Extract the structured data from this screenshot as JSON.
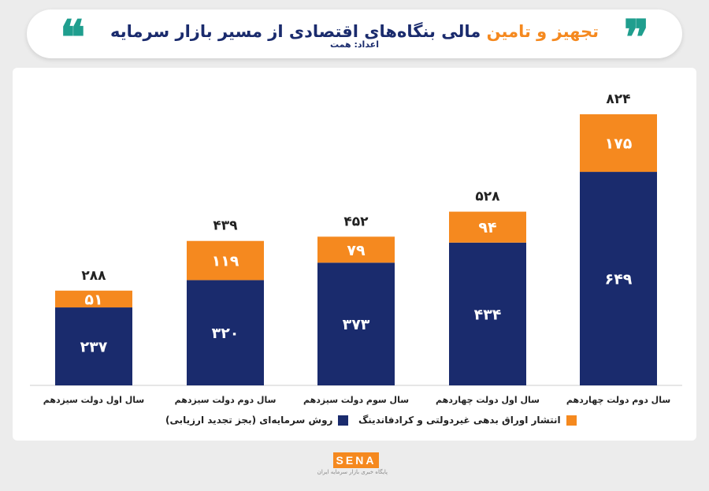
{
  "header": {
    "title_highlight": "تجهیز و تامین",
    "title_rest": " مالی بنگاه‌های اقتصادی از مسیر بازار سرمایه",
    "subtitle": "اعداد: همت",
    "quote_left_glyph": "❝",
    "quote_right_glyph": "❞"
  },
  "colors": {
    "navy": "#1a2b6d",
    "orange": "#f5891f",
    "teal": "#1f9e8e"
  },
  "chart_data": {
    "type": "bar",
    "stacked": true,
    "categories": [
      "سال اول دولت سیزدهم",
      "سال دوم دولت سیزدهم",
      "سال سوم دولت سیزدهم",
      "سال اول دولت چهاردهم",
      "سال دوم دولت چهاردهم"
    ],
    "series": [
      {
        "name": "روش سرمایه‌ای (بجز تجدید ارزیابی)",
        "color": "#1a2b6d",
        "values": [
          237,
          320,
          373,
          434,
          649
        ],
        "labels": [
          "۲۳۷",
          "۳۲۰",
          "۳۷۳",
          "۴۳۴",
          "۶۴۹"
        ]
      },
      {
        "name": "انتشار اوراق بدهی غیردولتی و کرادفاندینگ",
        "color": "#f5891f",
        "values": [
          51,
          119,
          79,
          94,
          175
        ],
        "labels": [
          "۵۱",
          "۱۱۹",
          "۷۹",
          "۹۴",
          "۱۷۵"
        ]
      }
    ],
    "totals": [
      288,
      439,
      452,
      528,
      824
    ],
    "total_labels": [
      "۲۸۸",
      "۴۳۹",
      "۴۵۲",
      "۵۲۸",
      "۸۲۴"
    ],
    "ylim": [
      0,
      824
    ],
    "grid": false,
    "legend_position": "bottom"
  },
  "legend": {
    "item1": "انتشار اوراق بدهی غیردولتی و کرادفاندینگ",
    "item2": "روش سرمایه‌ای (بجز تجدید ارزیابی)"
  },
  "brand": {
    "logo": "SENA",
    "tagline": "پایگاه خبری بازار سرمایه ایران"
  }
}
